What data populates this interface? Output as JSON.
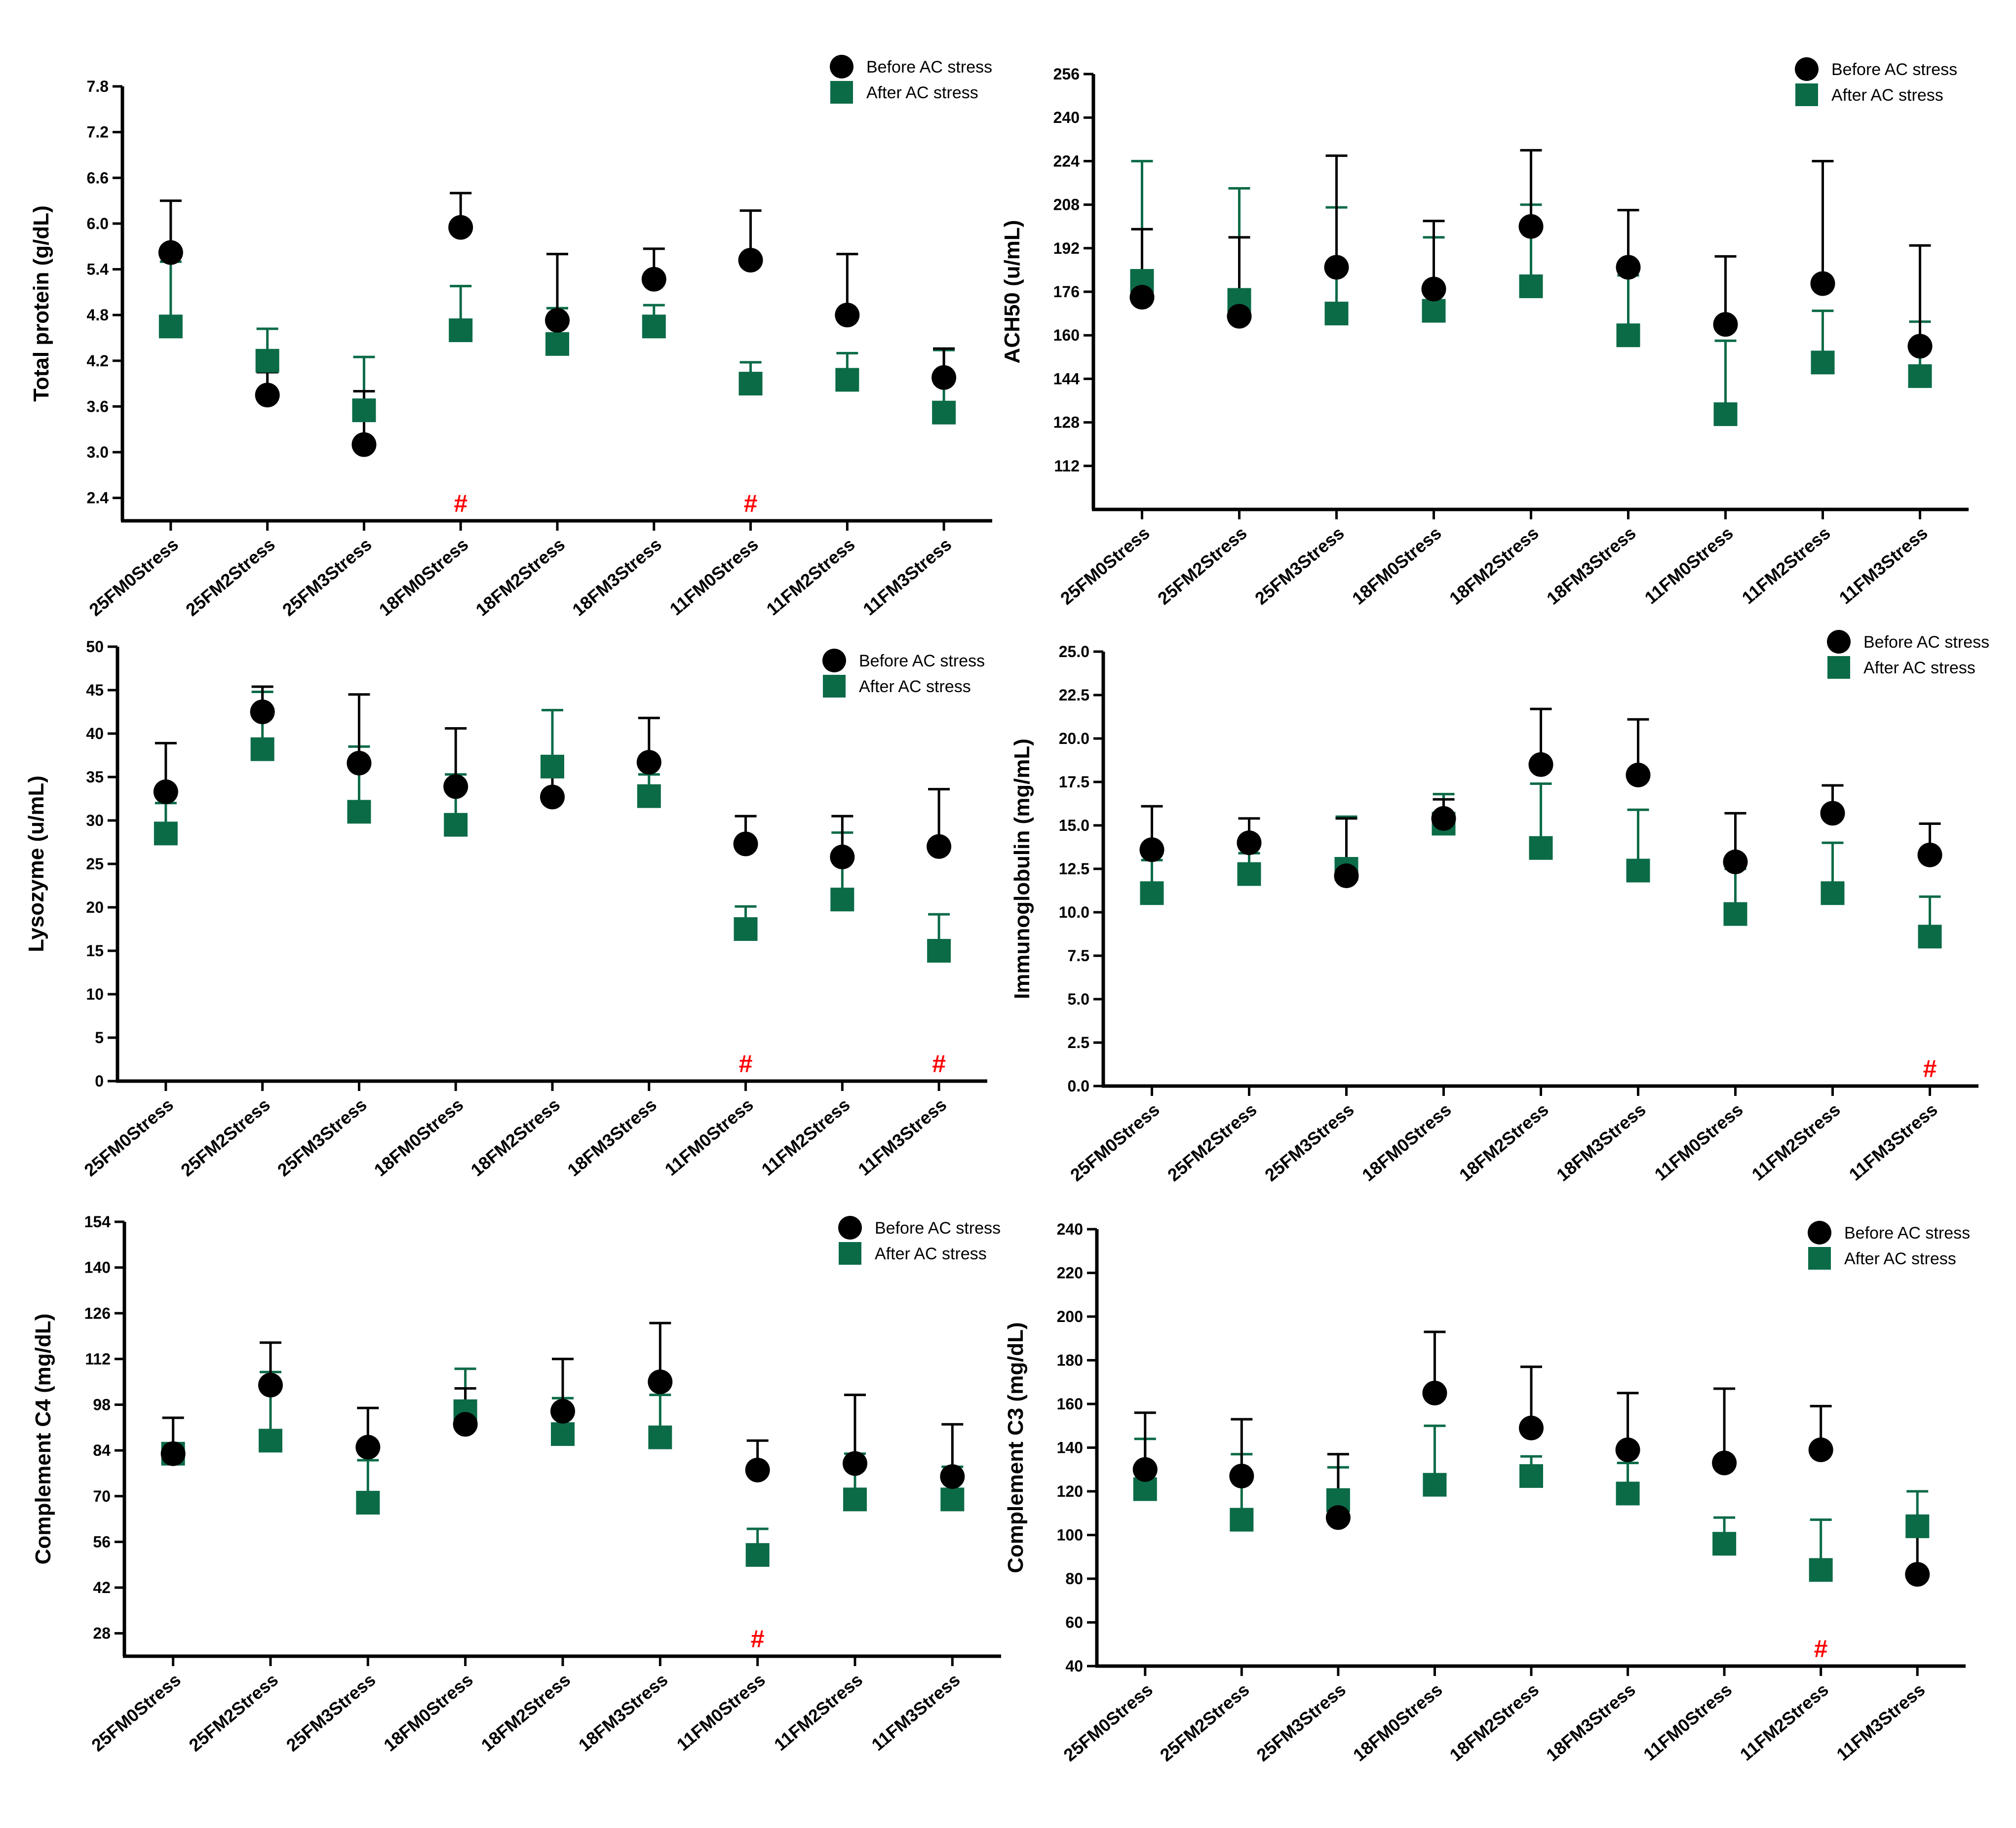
{
  "legend": {
    "before_label": "Before AC stress",
    "after_label": "After AC stress"
  },
  "colors": {
    "before": "#000000",
    "after": "#0b6b47",
    "significance": "#ff0000"
  },
  "chart_data": [
    {
      "id": "total-protein",
      "type": "scatter",
      "ylabel": "Total protein (g/dL)",
      "ylim": [
        2.1,
        7.8
      ],
      "yticks": [
        2.4,
        3.0,
        3.6,
        4.2,
        4.8,
        5.4,
        6.0,
        6.6,
        7.2,
        7.8
      ],
      "yticklabels": [
        "2.4",
        "3.0",
        "3.6",
        "4.2",
        "4.8",
        "5.4",
        "6.0",
        "6.6",
        "7.2",
        "7.8"
      ],
      "categories": [
        "25FM0Stress",
        "25FM2Stress",
        "25FM3Stress",
        "18FM0Stress",
        "18FM2Stress",
        "18FM3Stress",
        "11FM0Stress",
        "11FM2Stress",
        "11FM3Stress"
      ],
      "series": [
        {
          "name": "Before AC stress",
          "values": [
            5.62,
            3.75,
            3.1,
            5.95,
            4.73,
            5.27,
            5.52,
            4.8,
            3.98
          ],
          "errors": [
            0.68,
            0.3,
            0.7,
            0.45,
            0.87,
            0.4,
            0.65,
            0.8,
            0.38
          ]
        },
        {
          "name": "After AC stress",
          "values": [
            4.65,
            4.2,
            3.55,
            4.6,
            4.42,
            4.65,
            3.9,
            3.95,
            3.52
          ],
          "errors": [
            0.85,
            0.42,
            0.7,
            0.58,
            0.47,
            0.28,
            0.28,
            0.35,
            0.82
          ]
        }
      ],
      "significance": [
        {
          "category_index": 3,
          "label": "#"
        },
        {
          "category_index": 6,
          "label": "#"
        }
      ]
    },
    {
      "id": "ach50",
      "type": "scatter",
      "ylabel": "ACH50 (u/mL)",
      "ylim": [
        96,
        256
      ],
      "yticks": [
        112,
        128,
        144,
        160,
        176,
        192,
        208,
        224,
        240,
        256
      ],
      "yticklabels": [
        "112",
        "128",
        "144",
        "160",
        "176",
        "192",
        "208",
        "224",
        "240",
        "256"
      ],
      "categories": [
        "25FM0Stress",
        "25FM2Stress",
        "25FM3Stress",
        "18FM0Stress",
        "18FM2Stress",
        "18FM3Stress",
        "11FM0Stress",
        "11FM2Stress",
        "11FM3Stress"
      ],
      "series": [
        {
          "name": "Before AC stress",
          "values": [
            174,
            167,
            185,
            177,
            200,
            185,
            164,
            179,
            156
          ],
          "errors": [
            25,
            29,
            41,
            25,
            28,
            21,
            25,
            45,
            37
          ]
        },
        {
          "name": "After AC stress",
          "values": [
            180,
            173,
            168,
            169,
            178,
            160,
            131,
            150,
            145
          ],
          "errors": [
            44,
            41,
            39,
            27,
            30,
            22,
            27,
            19,
            20
          ]
        }
      ],
      "significance": []
    },
    {
      "id": "lysozyme",
      "type": "scatter",
      "ylabel": "Lysozyme (u/mL)",
      "ylim": [
        0,
        50
      ],
      "yticks": [
        0,
        5,
        10,
        15,
        20,
        25,
        30,
        35,
        40,
        45,
        50
      ],
      "yticklabels": [
        "0",
        "5",
        "10",
        "15",
        "20",
        "25",
        "30",
        "35",
        "40",
        "45",
        "50"
      ],
      "categories": [
        "25FM0Stress",
        "25FM2Stress",
        "25FM3Stress",
        "18FM0Stress",
        "18FM2Stress",
        "18FM3Stress",
        "11FM0Stress",
        "11FM2Stress",
        "11FM3Stress"
      ],
      "series": [
        {
          "name": "Before AC stress",
          "values": [
            33.3,
            42.5,
            36.6,
            33.9,
            32.7,
            36.7,
            27.3,
            25.8,
            27.0
          ],
          "errors": [
            5.6,
            2.9,
            7.9,
            6.7,
            3.5,
            5.1,
            3.2,
            4.7,
            6.6
          ]
        },
        {
          "name": "After AC stress",
          "values": [
            28.5,
            38.2,
            31.0,
            29.5,
            36.2,
            32.8,
            17.5,
            20.9,
            15.0
          ],
          "errors": [
            3.5,
            6.6,
            7.5,
            5.8,
            6.5,
            2.5,
            2.6,
            7.7,
            4.2
          ]
        }
      ],
      "significance": [
        {
          "category_index": 6,
          "label": "#"
        },
        {
          "category_index": 8,
          "label": "#"
        }
      ]
    },
    {
      "id": "immunoglobulin",
      "type": "scatter",
      "ylabel": "Immunoglobulin (mg/mL)",
      "ylim": [
        0,
        25
      ],
      "yticks": [
        0,
        2.5,
        5,
        7.5,
        10,
        12.5,
        15,
        17.5,
        20,
        22.5,
        25
      ],
      "yticklabels": [
        "0.0",
        "2.5",
        "5.0",
        "7.5",
        "10.0",
        "12.5",
        "15.0",
        "17.5",
        "20.0",
        "22.5",
        "25.0"
      ],
      "categories": [
        "25FM0Stress",
        "25FM2Stress",
        "25FM3Stress",
        "18FM0Stress",
        "18FM2Stress",
        "18FM3Stress",
        "11FM0Stress",
        "11FM2Stress",
        "11FM3Stress"
      ],
      "series": [
        {
          "name": "Before AC stress",
          "values": [
            13.6,
            14.0,
            12.1,
            15.4,
            18.5,
            17.9,
            12.9,
            15.7,
            13.3
          ],
          "errors": [
            2.5,
            1.4,
            3.3,
            1.1,
            3.2,
            3.2,
            2.8,
            1.6,
            1.8
          ]
        },
        {
          "name": "After AC stress",
          "values": [
            11.1,
            12.2,
            12.5,
            15.1,
            13.7,
            12.4,
            9.9,
            11.1,
            8.6
          ],
          "errors": [
            1.9,
            1.2,
            3.0,
            1.7,
            3.7,
            3.5,
            2.6,
            2.9,
            2.3
          ]
        }
      ],
      "significance": [
        {
          "category_index": 8,
          "label": "#"
        }
      ]
    },
    {
      "id": "complement-c4",
      "type": "scatter",
      "ylabel": "Complement C4 (mg/dL)",
      "ylim": [
        21,
        154
      ],
      "yticks": [
        28,
        42,
        56,
        70,
        84,
        98,
        112,
        126,
        140,
        154
      ],
      "yticklabels": [
        "28",
        "42",
        "56",
        "70",
        "84",
        "98",
        "112",
        "126",
        "140",
        "154"
      ],
      "categories": [
        "25FM0Stress",
        "25FM2Stress",
        "25FM3Stress",
        "18FM0Stress",
        "18FM2Stress",
        "18FM3Stress",
        "11FM0Stress",
        "11FM2Stress",
        "11FM3Stress"
      ],
      "series": [
        {
          "name": "Before AC stress",
          "values": [
            83,
            104,
            85,
            92,
            96,
            105,
            78,
            80,
            76
          ],
          "errors": [
            11,
            13,
            12,
            11,
            16,
            18,
            9,
            21,
            16
          ]
        },
        {
          "name": "After AC stress",
          "values": [
            83,
            87,
            68,
            96,
            89,
            88,
            52,
            69,
            69
          ],
          "errors": [
            2,
            21,
            13,
            13,
            11,
            13,
            8,
            14,
            10
          ]
        }
      ],
      "significance": [
        {
          "category_index": 6,
          "label": "#"
        }
      ]
    },
    {
      "id": "complement-c3",
      "type": "scatter",
      "ylabel": "Complement C3 (mg/dL)",
      "ylim": [
        40,
        240
      ],
      "yticks": [
        40,
        60,
        80,
        100,
        120,
        140,
        160,
        180,
        200,
        220,
        240
      ],
      "yticklabels": [
        "40",
        "60",
        "80",
        "100",
        "120",
        "140",
        "160",
        "180",
        "200",
        "220",
        "240"
      ],
      "categories": [
        "25FM0Stress",
        "25FM2Stress",
        "25FM3Stress",
        "18FM0Stress",
        "18FM2Stress",
        "18FM3Stress",
        "11FM0Stress",
        "11FM2Stress",
        "11FM3Stress"
      ],
      "series": [
        {
          "name": "Before AC stress",
          "values": [
            130,
            127,
            108,
            165,
            149,
            139,
            133,
            139,
            82
          ],
          "errors": [
            26,
            26,
            29,
            28,
            28,
            26,
            34,
            20,
            26
          ]
        },
        {
          "name": "After AC stress",
          "values": [
            121,
            107,
            116,
            123,
            127,
            119,
            96,
            84,
            104
          ],
          "errors": [
            23,
            30,
            15,
            27,
            9,
            14,
            12,
            23,
            16
          ]
        }
      ],
      "significance": [
        {
          "category_index": 7,
          "label": "#"
        }
      ]
    }
  ]
}
